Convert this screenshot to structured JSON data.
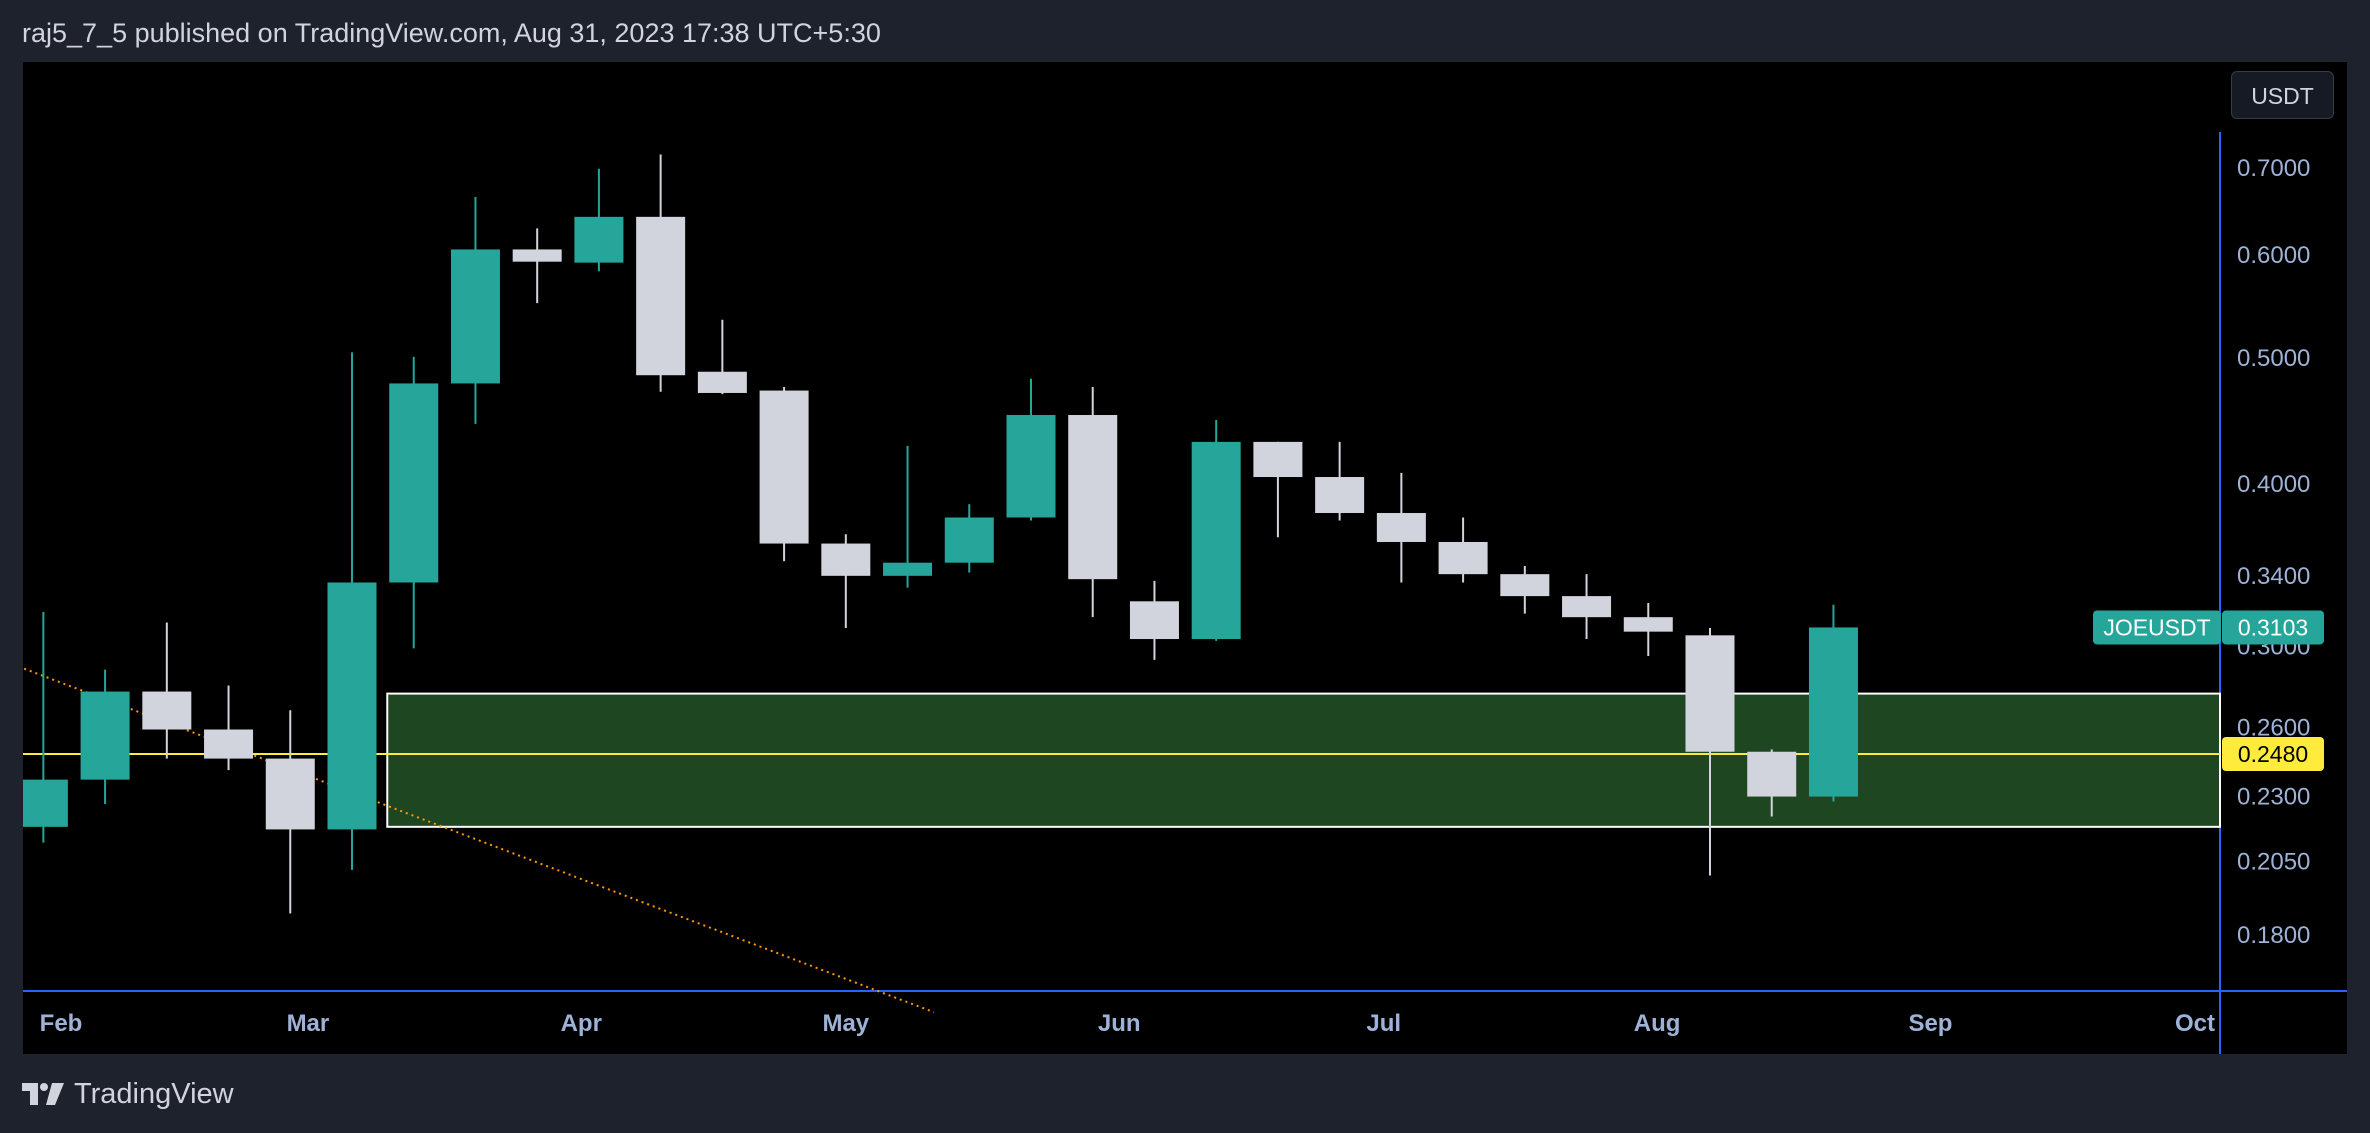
{
  "header": {
    "attribution": "raj5_7_5 published on TradingView.com, Aug 31, 2023 17:38 UTC+5:30"
  },
  "toolbar": {
    "currency": "USDT"
  },
  "footer": {
    "brand": "TradingView",
    "logo_icon": "tradingview-logo-icon"
  },
  "colors": {
    "background": "#000000",
    "page": "#1e222d",
    "up": "#26a69a",
    "down": "#d1d4dc",
    "axis_text": "#9db2d6",
    "axis_line": "#2962ff",
    "zone_fill": "#1e4620",
    "zone_border": "#ffffff",
    "level_line": "#ffeb3b",
    "trend_line": "#ff9800"
  },
  "chart_data": {
    "type": "candlestick",
    "symbol": "JOEUSDT",
    "interval": "weekly",
    "y_scale": "log",
    "ylim": [
      0.157,
      0.755
    ],
    "y_ticks": [
      "0.7000",
      "0.6000",
      "0.5000",
      "0.4000",
      "0.3400",
      "0.3000",
      "0.2600",
      "0.2300",
      "0.2050",
      "0.1800"
    ],
    "x_ticks": [
      {
        "label": "Feb",
        "date": "2023-02-01"
      },
      {
        "label": "Mar",
        "date": "2023-03-01"
      },
      {
        "label": "Apr",
        "date": "2023-04-01"
      },
      {
        "label": "May",
        "date": "2023-05-01"
      },
      {
        "label": "Jun",
        "date": "2023-06-01"
      },
      {
        "label": "Jul",
        "date": "2023-07-01"
      },
      {
        "label": "Aug",
        "date": "2023-08-01"
      },
      {
        "label": "Sep",
        "date": "2023-09-01"
      },
      {
        "label": "Oct",
        "date": "2023-10-01"
      }
    ],
    "candles": [
      {
        "date": "2023-01-30",
        "open": 0.218,
        "high": 0.319,
        "low": 0.212,
        "close": 0.237
      },
      {
        "date": "2023-02-06",
        "open": 0.237,
        "high": 0.288,
        "low": 0.227,
        "close": 0.277
      },
      {
        "date": "2023-02-13",
        "open": 0.277,
        "high": 0.313,
        "low": 0.246,
        "close": 0.259
      },
      {
        "date": "2023-02-20",
        "open": 0.259,
        "high": 0.28,
        "low": 0.241,
        "close": 0.246
      },
      {
        "date": "2023-02-27",
        "open": 0.246,
        "high": 0.268,
        "low": 0.187,
        "close": 0.217
      },
      {
        "date": "2023-03-06",
        "open": 0.217,
        "high": 0.505,
        "low": 0.202,
        "close": 0.336
      },
      {
        "date": "2023-03-13",
        "open": 0.336,
        "high": 0.501,
        "low": 0.299,
        "close": 0.478
      },
      {
        "date": "2023-03-20",
        "open": 0.478,
        "high": 0.665,
        "low": 0.445,
        "close": 0.606
      },
      {
        "date": "2023-03-27",
        "open": 0.606,
        "high": 0.629,
        "low": 0.551,
        "close": 0.593
      },
      {
        "date": "2023-04-03",
        "open": 0.592,
        "high": 0.699,
        "low": 0.583,
        "close": 0.642
      },
      {
        "date": "2023-04-10",
        "open": 0.642,
        "high": 0.717,
        "low": 0.471,
        "close": 0.485
      },
      {
        "date": "2023-04-17",
        "open": 0.488,
        "high": 0.535,
        "low": 0.469,
        "close": 0.47
      },
      {
        "date": "2023-04-24",
        "open": 0.472,
        "high": 0.475,
        "low": 0.349,
        "close": 0.36
      },
      {
        "date": "2023-05-01",
        "open": 0.36,
        "high": 0.366,
        "low": 0.31,
        "close": 0.34
      },
      {
        "date": "2023-05-08",
        "open": 0.34,
        "high": 0.428,
        "low": 0.333,
        "close": 0.348
      },
      {
        "date": "2023-05-15",
        "open": 0.348,
        "high": 0.386,
        "low": 0.342,
        "close": 0.377
      },
      {
        "date": "2023-05-22",
        "open": 0.377,
        "high": 0.482,
        "low": 0.375,
        "close": 0.452
      },
      {
        "date": "2023-05-29",
        "open": 0.452,
        "high": 0.475,
        "low": 0.316,
        "close": 0.338
      },
      {
        "date": "2023-06-05",
        "open": 0.325,
        "high": 0.337,
        "low": 0.293,
        "close": 0.304
      },
      {
        "date": "2023-06-12",
        "open": 0.304,
        "high": 0.448,
        "low": 0.303,
        "close": 0.431
      },
      {
        "date": "2023-06-19",
        "open": 0.431,
        "high": 0.431,
        "low": 0.364,
        "close": 0.405
      },
      {
        "date": "2023-06-26",
        "open": 0.405,
        "high": 0.431,
        "low": 0.375,
        "close": 0.38
      },
      {
        "date": "2023-07-03",
        "open": 0.38,
        "high": 0.408,
        "low": 0.336,
        "close": 0.361
      },
      {
        "date": "2023-07-10",
        "open": 0.361,
        "high": 0.377,
        "low": 0.336,
        "close": 0.341
      },
      {
        "date": "2023-07-17",
        "open": 0.341,
        "high": 0.346,
        "low": 0.318,
        "close": 0.328
      },
      {
        "date": "2023-07-24",
        "open": 0.328,
        "high": 0.341,
        "low": 0.304,
        "close": 0.316
      },
      {
        "date": "2023-07-31",
        "open": 0.316,
        "high": 0.324,
        "low": 0.295,
        "close": 0.308
      },
      {
        "date": "2023-08-07",
        "open": 0.306,
        "high": 0.31,
        "low": 0.2,
        "close": 0.249
      },
      {
        "date": "2023-08-14",
        "open": 0.249,
        "high": 0.25,
        "low": 0.222,
        "close": 0.23
      },
      {
        "date": "2023-08-21",
        "open": 0.23,
        "high": 0.323,
        "low": 0.228,
        "close": 0.3103
      }
    ],
    "zone": {
      "top": 0.276,
      "bottom": 0.218
    },
    "level_line": {
      "value": 0.248,
      "label": "0.2480"
    },
    "trend_line": {
      "start": {
        "date": "2023-01-30",
        "value": 0.295
      },
      "end": {
        "date": "2023-05-08",
        "value": 0.157
      }
    },
    "last_price": {
      "label": "JOEUSDT",
      "value": "0.3103"
    }
  }
}
